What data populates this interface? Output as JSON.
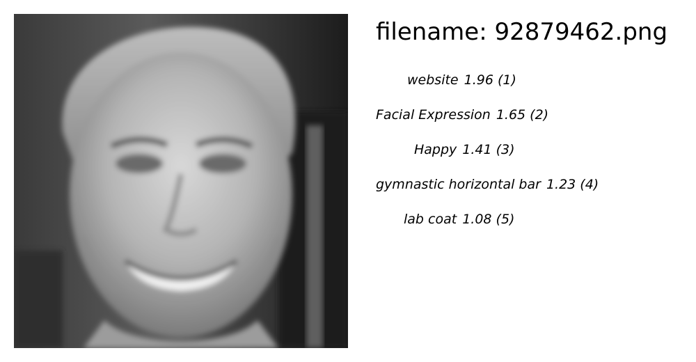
{
  "image": {
    "description_icon": "face-photo",
    "tone": "grayscale"
  },
  "header": {
    "filename_label": "filename: 92879462.png"
  },
  "labels": [
    {
      "name": "website",
      "score": "1.96 (1)"
    },
    {
      "name": "Facial Expression",
      "score": "1.65 (2)"
    },
    {
      "name": "Happy",
      "score": "1.41 (3)"
    },
    {
      "name": "gymnastic horizontal bar",
      "score": "1.23 (4)"
    },
    {
      "name": "lab coat",
      "score": "1.08 (5)"
    }
  ]
}
